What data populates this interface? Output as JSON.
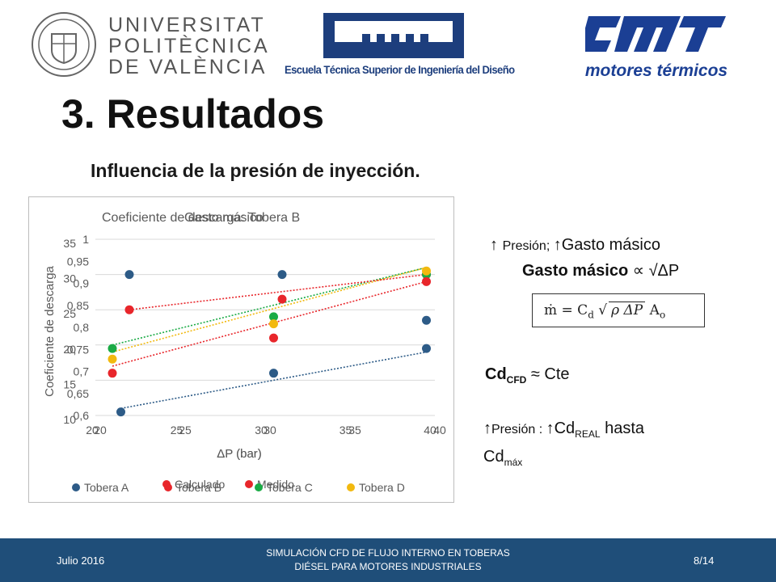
{
  "header": {
    "upv_lines": [
      "UNIVERSITAT",
      "POLITÈCNICA",
      "DE VALÈNCIA"
    ],
    "etsid_text": "Escuela Técnica Superior de Ingeniería del Diseño",
    "cmt_text": "motores térmicos"
  },
  "title": "3. Resultados",
  "subtitle": "Influencia de la presión de inyección.",
  "chart_data": {
    "type": "scatter",
    "title": "Coeficiente de descarga: Tobera B",
    "overlay_title": "Gasto másico",
    "xlabel": "ΔP (bar)",
    "ylabel": "Coeficiente de descarga",
    "x_ticks_upper": [
      "20",
      "25",
      "30",
      "35",
      "40"
    ],
    "x_ticks_lower": [
      "20",
      "25",
      "30",
      "35",
      "40"
    ],
    "y_ticks_cd": [
      "0,6",
      "0,65",
      "0,7",
      "0,75",
      "0,8",
      "0,85",
      "0,9",
      "0,95",
      "1"
    ],
    "y_ticks_mass": [
      "10",
      "15",
      "20",
      "25",
      "30",
      "35"
    ],
    "legend_upper": [
      "Calculado",
      "Medido"
    ],
    "legend_lower": [
      "Tobera A",
      "Tobera B",
      "Tobera C",
      "Tobera D"
    ],
    "xlim": [
      20,
      40
    ],
    "ylim": [
      10,
      35
    ],
    "series": [
      {
        "name": "Tobera A",
        "color": "#2d5b87",
        "x": [
          21.5,
          30.5,
          39.5
        ],
        "y": [
          10.5,
          16,
          19.5
        ],
        "trend": [
          [
            21.5,
            11
          ],
          [
            39.5,
            19
          ]
        ]
      },
      {
        "name": "Tobera B",
        "color": "#e8262b",
        "x": [
          21,
          30.5,
          39.5
        ],
        "y": [
          16,
          21,
          30
        ],
        "trend": [
          [
            21,
            17
          ],
          [
            39.5,
            29
          ]
        ]
      },
      {
        "name": "Tobera C",
        "color": "#1aab45",
        "x": [
          21,
          30.5,
          39.5
        ],
        "y": [
          19.5,
          24,
          30
        ],
        "trend": [
          [
            21,
            20
          ],
          [
            39.5,
            31
          ]
        ]
      },
      {
        "name": "Tobera D",
        "color": "#f2b90f",
        "x": [
          21,
          30.5,
          39.5
        ],
        "y": [
          18,
          23,
          30.5
        ],
        "trend": [
          [
            21,
            19
          ],
          [
            39.5,
            31
          ]
        ]
      },
      {
        "name": "Medido",
        "color": "#2d5b87",
        "x": [
          22,
          31,
          39.5
        ],
        "y": [
          30,
          30,
          23.5
        ],
        "trend": []
      },
      {
        "name": "Calculado",
        "color": "#e8262b",
        "x": [
          22,
          31,
          39.5
        ],
        "y": [
          25,
          26.5,
          29
        ],
        "trend": [
          [
            22,
            25
          ],
          [
            39.5,
            30
          ]
        ]
      }
    ]
  },
  "right": {
    "line1_arrow": "↑",
    "line1_small": "Presión; ",
    "line1_arrow2": "↑",
    "line1_big": "Gasto másico",
    "line2_bold": "Gasto másico",
    "line2_rest": " ∝  √ΔP",
    "formula_left": "ṁ = C",
    "formula_sub": "d",
    "formula_root": "ρ ΔP",
    "formula_right": "A",
    "formula_sub2": "o",
    "cd_main": "Cd",
    "cd_sub": "CFD",
    "cd_rest": " ≈ Cte",
    "l4_arrow": "↑",
    "l4_small": "Presión : ",
    "l4_arrow2": "↑",
    "l4_cd": "Cd",
    "l4_sub": "REAL",
    "l4_rest": " hasta",
    "l4_cdmax": "Cd",
    "l4_sub2": "máx"
  },
  "footer": {
    "date": "Julio 2016",
    "center_line1": "SIMULACIÓN CFD DE FLUJO INTERNO EN TOBERAS",
    "center_line2": "DIÉSEL PARA MOTORES INDUSTRIALES",
    "page": "8/14"
  }
}
